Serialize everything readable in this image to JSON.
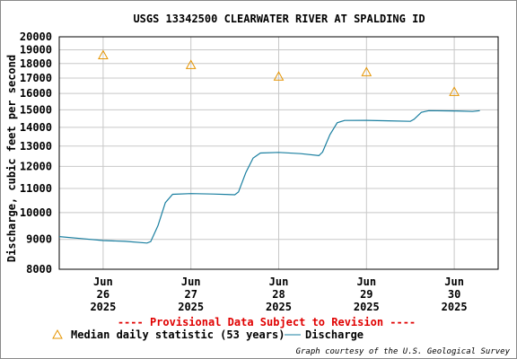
{
  "colors": {
    "series": "#1a7fa0",
    "median": "#e59400",
    "grid": "#c8c8c8",
    "provisional": "#e00000",
    "axis": "#000000"
  },
  "legend": {
    "median_label": "Median daily statistic (53 years)",
    "discharge_label": "Discharge"
  },
  "provisional_note": "---- Provisional Data Subject to Revision ----",
  "credit": "Graph courtesy of the U.S. Geological Survey",
  "chart_data": {
    "type": "line",
    "title": "USGS 13342500 CLEARWATER RIVER AT SPALDING ID",
    "ylabel": "Discharge, cubic feet per second",
    "xlabel": "",
    "yscale": "log",
    "ylim": [
      8000,
      20000
    ],
    "yticks": [
      8000,
      9000,
      10000,
      11000,
      12000,
      13000,
      14000,
      15000,
      16000,
      17000,
      18000,
      19000,
      20000
    ],
    "ytick_labels": [
      "8000",
      "9000",
      "10000",
      "11000",
      "12000",
      "13000",
      "14000",
      "15000",
      "16000",
      "17000",
      "18000",
      "19000",
      "20000"
    ],
    "xlim": [
      "2025-06-25T12:00",
      "2025-06-30T12:00"
    ],
    "xticks": [
      {
        "x": "2025-06-26T00:00",
        "month": "Jun",
        "day": "26",
        "year": "2025"
      },
      {
        "x": "2025-06-27T00:00",
        "month": "Jun",
        "day": "27",
        "year": "2025"
      },
      {
        "x": "2025-06-28T00:00",
        "month": "Jun",
        "day": "28",
        "year": "2025"
      },
      {
        "x": "2025-06-29T00:00",
        "month": "Jun",
        "day": "29",
        "year": "2025"
      },
      {
        "x": "2025-06-30T00:00",
        "month": "Jun",
        "day": "30",
        "year": "2025"
      }
    ],
    "grid": true,
    "legend_position": "bottom",
    "series": [
      {
        "name": "Discharge",
        "style": "line",
        "points": [
          {
            "x": "2025-06-25T12:00",
            "y": 9100
          },
          {
            "x": "2025-06-25T18:00",
            "y": 9030
          },
          {
            "x": "2025-06-26T00:00",
            "y": 8960
          },
          {
            "x": "2025-06-26T06:00",
            "y": 8930
          },
          {
            "x": "2025-06-26T12:00",
            "y": 8870
          },
          {
            "x": "2025-06-26T13:00",
            "y": 8920
          },
          {
            "x": "2025-06-26T15:00",
            "y": 9500
          },
          {
            "x": "2025-06-26T17:00",
            "y": 10400
          },
          {
            "x": "2025-06-26T19:00",
            "y": 10750
          },
          {
            "x": "2025-06-27T00:00",
            "y": 10780
          },
          {
            "x": "2025-06-27T06:00",
            "y": 10760
          },
          {
            "x": "2025-06-27T12:00",
            "y": 10730
          },
          {
            "x": "2025-06-27T13:00",
            "y": 10850
          },
          {
            "x": "2025-06-27T15:00",
            "y": 11700
          },
          {
            "x": "2025-06-27T17:00",
            "y": 12400
          },
          {
            "x": "2025-06-27T19:00",
            "y": 12650
          },
          {
            "x": "2025-06-28T00:00",
            "y": 12680
          },
          {
            "x": "2025-06-28T06:00",
            "y": 12620
          },
          {
            "x": "2025-06-28T11:00",
            "y": 12520
          },
          {
            "x": "2025-06-28T12:00",
            "y": 12700
          },
          {
            "x": "2025-06-28T14:00",
            "y": 13600
          },
          {
            "x": "2025-06-28T16:00",
            "y": 14250
          },
          {
            "x": "2025-06-28T18:00",
            "y": 14380
          },
          {
            "x": "2025-06-29T00:00",
            "y": 14390
          },
          {
            "x": "2025-06-29T06:00",
            "y": 14360
          },
          {
            "x": "2025-06-29T12:00",
            "y": 14330
          },
          {
            "x": "2025-06-29T13:00",
            "y": 14450
          },
          {
            "x": "2025-06-29T15:00",
            "y": 14850
          },
          {
            "x": "2025-06-29T17:00",
            "y": 14950
          },
          {
            "x": "2025-06-30T00:00",
            "y": 14930
          },
          {
            "x": "2025-06-30T05:00",
            "y": 14900
          },
          {
            "x": "2025-06-30T07:00",
            "y": 14950
          }
        ]
      },
      {
        "name": "Median daily statistic (53 years)",
        "style": "triangle",
        "points": [
          {
            "x": "2025-06-26T00:00",
            "y": 18600
          },
          {
            "x": "2025-06-27T00:00",
            "y": 17900
          },
          {
            "x": "2025-06-28T00:00",
            "y": 17100
          },
          {
            "x": "2025-06-29T00:00",
            "y": 17400
          },
          {
            "x": "2025-06-30T00:00",
            "y": 16100
          }
        ]
      }
    ]
  }
}
